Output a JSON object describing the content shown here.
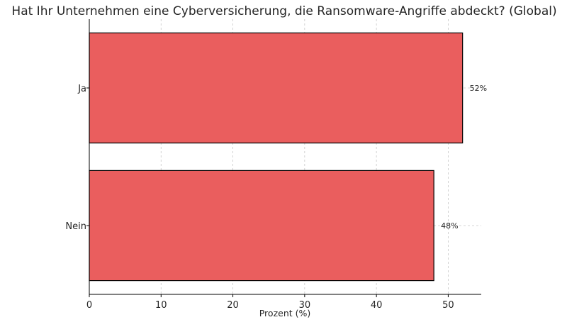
{
  "chart_data": {
    "type": "bar",
    "orientation": "horizontal",
    "title": "Hat Ihr Unternehmen eine Cyberversicherung, die Ransomware-Angriffe abdeckt? (Global)",
    "xlabel": "Prozent (%)",
    "ylabel": "",
    "categories": [
      "Ja",
      "Nein"
    ],
    "values": [
      52,
      48
    ],
    "data_labels": [
      "52%",
      "48%"
    ],
    "xlim": [
      0,
      54.6
    ],
    "x_ticks": [
      0,
      10,
      20,
      30,
      40,
      50
    ],
    "grid": true,
    "bar_color": "#ea5e5e",
    "bar_edge_color": "#000000"
  }
}
